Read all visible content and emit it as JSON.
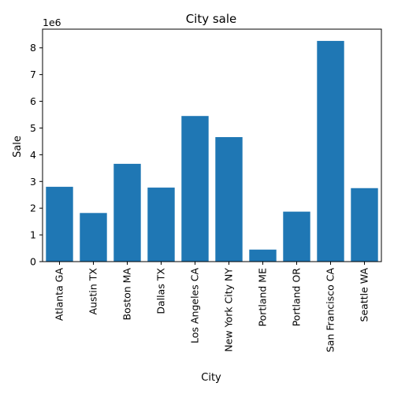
{
  "chart_data": {
    "type": "bar",
    "title": "City sale",
    "xlabel": "City",
    "ylabel": "Sale",
    "offset_label": "1e6",
    "categories": [
      "Atlanta GA",
      "Austin TX",
      "Boston MA",
      "Dallas TX",
      "Los Angeles CA",
      "New York City NY",
      "Portland ME",
      "Portland OR",
      "San Francisco CA",
      "Seattle WA"
    ],
    "values": [
      2800000,
      1820000,
      3660000,
      2770000,
      5450000,
      4660000,
      450000,
      1870000,
      8260000,
      2750000
    ],
    "ylim": [
      0,
      8700000
    ],
    "yticks": [
      0,
      1000000,
      2000000,
      3000000,
      4000000,
      5000000,
      6000000,
      7000000,
      8000000
    ],
    "ytick_labels": [
      "0",
      "1",
      "2",
      "3",
      "4",
      "5",
      "6",
      "7",
      "8"
    ],
    "bar_color": "#1f77b4",
    "grid": false,
    "legend": "none"
  }
}
